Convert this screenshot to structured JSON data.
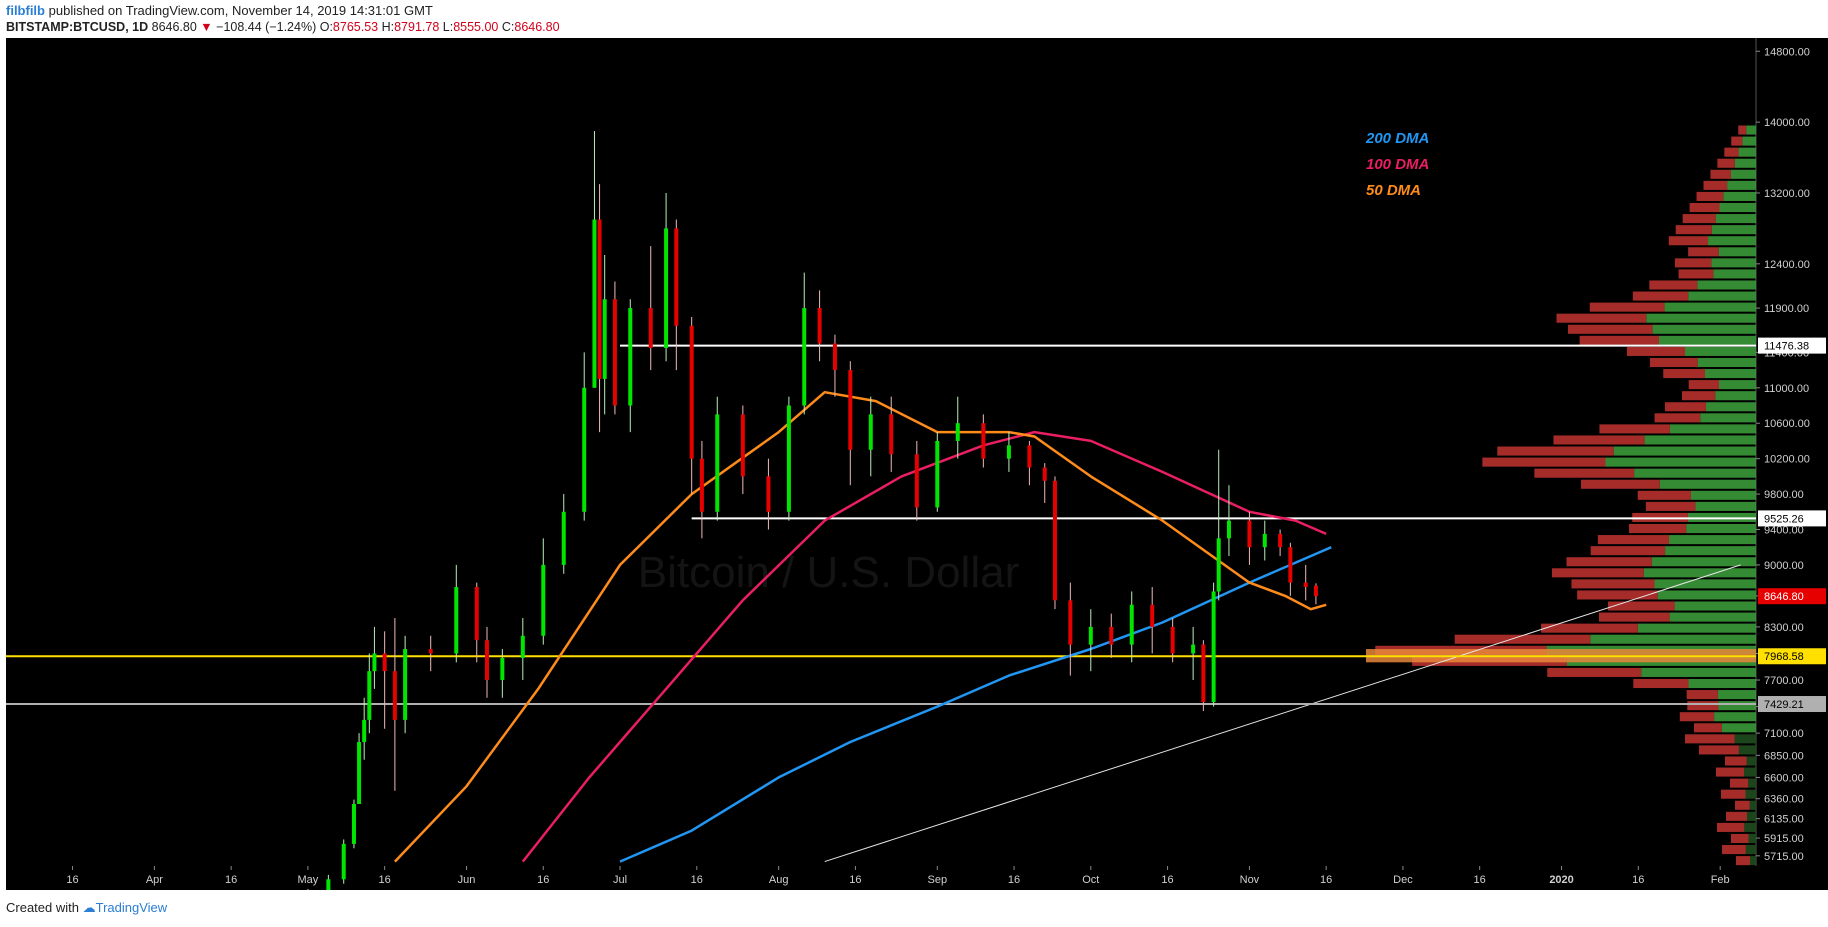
{
  "header": {
    "author": "filbfilb",
    "published": "published on TradingView.com, November 14, 2019 14:31:01 GMT",
    "symbol": "BITSTAMP:BTCUSD, 1D",
    "last": "8646.80",
    "arrow": "▼",
    "change": "−108.44 (−1.24%)",
    "o_label": "O:",
    "o": "8765.53",
    "h_label": "H:",
    "h": "8791.78",
    "l_label": "L:",
    "l": "8555.00",
    "c_label": "C:",
    "c": "8646.80"
  },
  "footer": {
    "created_with": "Created with",
    "brand": "TradingView"
  },
  "colors": {
    "background": "#000000",
    "up": "#00e600",
    "down": "#e60000",
    "dma200": "#2196f3",
    "dma100": "#e91e63",
    "dma50": "#ff8c1a",
    "key_level": "#ffe000",
    "support": "#b0b0b0",
    "resistance": "#ffffff"
  },
  "chart_data": {
    "type": "candlestick",
    "symbol": "BITSTAMP:BTCUSD",
    "interval": "1D",
    "ylim": [
      5600,
      14950
    ],
    "y_ticks": [
      5715,
      5915,
      6135,
      6360,
      6600,
      6850,
      7100,
      7400,
      7700,
      8000,
      8300,
      8650,
      9000,
      9400,
      9800,
      10200,
      10600,
      11000,
      11400,
      11900,
      12400,
      13200,
      14000,
      14800
    ],
    "y_tick_labels": [
      "5715.00",
      "5915.00",
      "6135.00",
      "6360.00",
      "6600.00",
      "6850.00",
      "7100.00",
      "7400.00",
      "7700.00",
      "8000.00",
      "8300.00",
      "8650.00",
      "9000.00",
      "9400.00",
      "9800.00",
      "10200.00",
      "10600.00",
      "11000.00",
      "11400.00",
      "11900.00",
      "12400.00",
      "13200.00",
      "14000.00",
      "14800.00"
    ],
    "x_labels": [
      "16",
      "Apr",
      "16",
      "May",
      "16",
      "Jun",
      "16",
      "Jul",
      "16",
      "Aug",
      "16",
      "Sep",
      "16",
      "Oct",
      "16",
      "Nov",
      "16",
      "Dec",
      "16",
      "2020",
      "16",
      "Feb"
    ],
    "x_label_dates": [
      "2019-03-16",
      "2019-04-01",
      "2019-04-16",
      "2019-05-01",
      "2019-05-16",
      "2019-06-01",
      "2019-06-16",
      "2019-07-01",
      "2019-07-16",
      "2019-08-01",
      "2019-08-16",
      "2019-09-01",
      "2019-09-16",
      "2019-10-01",
      "2019-10-16",
      "2019-11-01",
      "2019-11-16",
      "2019-12-01",
      "2019-12-16",
      "2020-01-01",
      "2020-01-16",
      "2020-02-01"
    ],
    "xlim": [
      "2019-03-03",
      "2020-02-08"
    ],
    "price_levels": [
      {
        "label": "11476.38",
        "value": 11476.38,
        "kind": "resistance"
      },
      {
        "label": "9525.26",
        "value": 9525.26,
        "kind": "resistance"
      },
      {
        "label": "8646.80",
        "value": 8646.8,
        "kind": "last"
      },
      {
        "label": "7968.58",
        "value": 7968.58,
        "kind": "key_level"
      },
      {
        "label": "7429.21",
        "value": 7429.21,
        "kind": "support"
      }
    ],
    "legend": [
      {
        "name": "200 DMA",
        "color": "#2196f3"
      },
      {
        "name": "100 DMA",
        "color": "#e91e63"
      },
      {
        "name": "50 DMA",
        "color": "#ff8c1a"
      }
    ],
    "watermark": "Bitcoin / U.S. Dollar",
    "dma200": [
      [
        "2019-07-01",
        5650
      ],
      [
        "2019-07-15",
        6000
      ],
      [
        "2019-08-01",
        6600
      ],
      [
        "2019-08-15",
        7000
      ],
      [
        "2019-09-01",
        7400
      ],
      [
        "2019-09-15",
        7750
      ],
      [
        "2019-10-01",
        8050
      ],
      [
        "2019-10-15",
        8350
      ],
      [
        "2019-11-01",
        8800
      ],
      [
        "2019-11-15",
        9150
      ],
      [
        "2019-11-17",
        9200
      ]
    ],
    "dma100": [
      [
        "2019-06-12",
        5650
      ],
      [
        "2019-06-25",
        6600
      ],
      [
        "2019-07-10",
        7600
      ],
      [
        "2019-07-25",
        8600
      ],
      [
        "2019-08-10",
        9500
      ],
      [
        "2019-08-25",
        10000
      ],
      [
        "2019-09-10",
        10350
      ],
      [
        "2019-09-20",
        10500
      ],
      [
        "2019-10-01",
        10400
      ],
      [
        "2019-10-15",
        10050
      ],
      [
        "2019-11-01",
        9600
      ],
      [
        "2019-11-10",
        9500
      ],
      [
        "2019-11-16",
        9350
      ]
    ],
    "dma50": [
      [
        "2019-05-18",
        5650
      ],
      [
        "2019-06-01",
        6500
      ],
      [
        "2019-06-15",
        7600
      ],
      [
        "2019-07-01",
        9000
      ],
      [
        "2019-07-15",
        9800
      ],
      [
        "2019-08-01",
        10500
      ],
      [
        "2019-08-10",
        10950
      ],
      [
        "2019-08-20",
        10850
      ],
      [
        "2019-09-01",
        10500
      ],
      [
        "2019-09-15",
        10500
      ],
      [
        "2019-09-20",
        10450
      ],
      [
        "2019-10-01",
        10000
      ],
      [
        "2019-10-15",
        9500
      ],
      [
        "2019-11-01",
        8800
      ],
      [
        "2019-11-08",
        8650
      ],
      [
        "2019-11-13",
        8500
      ],
      [
        "2019-11-16",
        8550
      ]
    ],
    "trendline": [
      [
        "2019-08-10",
        5650
      ],
      [
        "2020-02-05",
        9000
      ]
    ],
    "candles": [
      [
        "2019-05-01",
        5290,
        5340,
        5260,
        5320
      ],
      [
        "2019-05-05",
        5320,
        5500,
        5300,
        5450
      ],
      [
        "2019-05-08",
        5450,
        5900,
        5400,
        5850
      ],
      [
        "2019-05-10",
        5850,
        6350,
        5800,
        6300
      ],
      [
        "2019-05-11",
        6300,
        7100,
        6300,
        7000
      ],
      [
        "2019-05-12",
        7000,
        7500,
        6800,
        7250
      ],
      [
        "2019-05-13",
        7250,
        8000,
        7100,
        7800
      ],
      [
        "2019-05-14",
        7800,
        8300,
        7600,
        8000
      ],
      [
        "2019-05-16",
        8000,
        8250,
        7150,
        7800
      ],
      [
        "2019-05-18",
        7800,
        8400,
        6450,
        7250
      ],
      [
        "2019-05-20",
        7250,
        8200,
        7100,
        8050
      ],
      [
        "2019-05-25",
        8050,
        8200,
        7800,
        8000
      ],
      [
        "2019-05-30",
        8000,
        9000,
        7900,
        8750
      ],
      [
        "2019-06-03",
        8750,
        8800,
        7900,
        8150
      ],
      [
        "2019-06-05",
        8150,
        8300,
        7500,
        7700
      ],
      [
        "2019-06-08",
        7700,
        8050,
        7500,
        7950
      ],
      [
        "2019-06-12",
        7950,
        8400,
        7700,
        8200
      ],
      [
        "2019-06-16",
        8200,
        9300,
        8100,
        9000
      ],
      [
        "2019-06-20",
        9000,
        9800,
        8900,
        9600
      ],
      [
        "2019-06-24",
        9600,
        11400,
        9500,
        11000
      ],
      [
        "2019-06-26",
        11000,
        13900,
        11000,
        12900
      ],
      [
        "2019-06-27",
        12900,
        13300,
        10500,
        11100
      ],
      [
        "2019-06-28",
        11100,
        12500,
        10700,
        12000
      ],
      [
        "2019-06-30",
        12000,
        12200,
        10700,
        10800
      ],
      [
        "2019-07-03",
        10800,
        12000,
        10500,
        11900
      ],
      [
        "2019-07-07",
        11900,
        12600,
        11200,
        11450
      ],
      [
        "2019-07-10",
        11450,
        13200,
        11300,
        12800
      ],
      [
        "2019-07-12",
        12800,
        12900,
        11200,
        11700
      ],
      [
        "2019-07-15",
        11700,
        11800,
        9800,
        10200
      ],
      [
        "2019-07-17",
        10200,
        10400,
        9300,
        9600
      ],
      [
        "2019-07-20",
        9600,
        10900,
        9500,
        10700
      ],
      [
        "2019-07-25",
        10700,
        10800,
        9800,
        10000
      ],
      [
        "2019-07-30",
        10000,
        10200,
        9400,
        9600
      ],
      [
        "2019-08-03",
        9600,
        10900,
        9500,
        10800
      ],
      [
        "2019-08-06",
        10800,
        12300,
        10700,
        11900
      ],
      [
        "2019-08-09",
        11900,
        12100,
        11300,
        11500
      ],
      [
        "2019-08-12",
        11500,
        11600,
        10900,
        11200
      ],
      [
        "2019-08-15",
        11200,
        11300,
        9900,
        10300
      ],
      [
        "2019-08-19",
        10300,
        10900,
        10000,
        10700
      ],
      [
        "2019-08-23",
        10700,
        10900,
        10050,
        10250
      ],
      [
        "2019-08-28",
        10250,
        10400,
        9500,
        9650
      ],
      [
        "2019-09-01",
        9650,
        10500,
        9600,
        10400
      ],
      [
        "2019-09-05",
        10400,
        10900,
        10200,
        10600
      ],
      [
        "2019-09-10",
        10600,
        10700,
        10100,
        10200
      ],
      [
        "2019-09-15",
        10200,
        10500,
        10050,
        10350
      ],
      [
        "2019-09-19",
        10350,
        10400,
        9900,
        10100
      ],
      [
        "2019-09-22",
        10100,
        10150,
        9700,
        9950
      ],
      [
        "2019-09-24",
        9950,
        10000,
        8500,
        8600
      ],
      [
        "2019-09-27",
        8600,
        8800,
        7750,
        8100
      ],
      [
        "2019-10-01",
        8100,
        8500,
        7800,
        8300
      ],
      [
        "2019-10-05",
        8300,
        8450,
        7950,
        8100
      ],
      [
        "2019-10-09",
        8100,
        8700,
        7900,
        8550
      ],
      [
        "2019-10-13",
        8550,
        8750,
        8000,
        8300
      ],
      [
        "2019-10-17",
        8300,
        8400,
        7900,
        8000
      ],
      [
        "2019-10-21",
        8000,
        8300,
        7700,
        8100
      ],
      [
        "2019-10-23",
        8100,
        8150,
        7350,
        7450
      ],
      [
        "2019-10-25",
        7450,
        8800,
        7400,
        8700
      ],
      [
        "2019-10-26",
        8700,
        10300,
        8600,
        9300
      ],
      [
        "2019-10-28",
        9300,
        9900,
        9100,
        9500
      ],
      [
        "2019-11-01",
        9500,
        9600,
        9000,
        9200
      ],
      [
        "2019-11-04",
        9200,
        9500,
        9050,
        9350
      ],
      [
        "2019-11-07",
        9350,
        9400,
        9100,
        9200
      ],
      [
        "2019-11-09",
        9200,
        9250,
        8650,
        8800
      ],
      [
        "2019-11-12",
        8800,
        9000,
        8600,
        8750
      ],
      [
        "2019-11-14",
        8765.53,
        8791.78,
        8555,
        8646.8
      ]
    ],
    "volume_profile_note": "Volume-by-price histogram (green up / red down volume) drawn at right edge"
  }
}
